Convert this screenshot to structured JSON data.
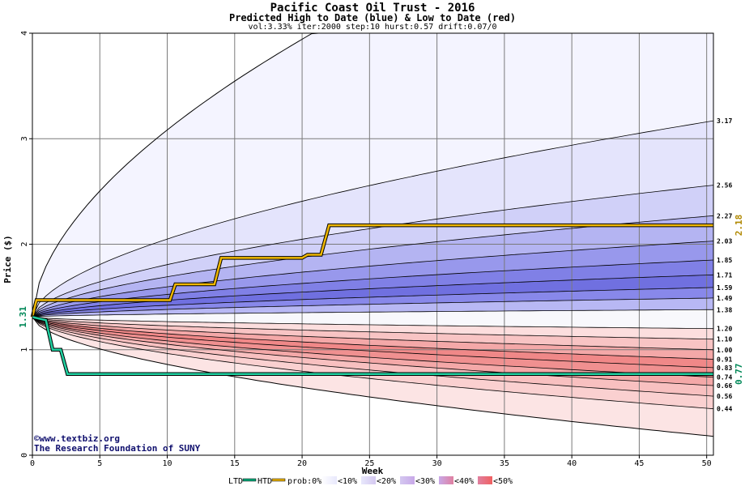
{
  "chart_data": {
    "type": "area",
    "title": "Pacific Coast Oil Trust - 2016",
    "subtitle": "Predicted High to Date (blue) &  Low to Date (red)",
    "params": "vol:3.33% iter:2000 step:10 hurst:0.57 drift:0.07/0",
    "xlabel": "Week",
    "ylabel": "Price ($)",
    "xlim": [
      0,
      50.5
    ],
    "ylim": [
      0,
      4
    ],
    "x_ticks": [
      0,
      5,
      10,
      15,
      20,
      25,
      30,
      35,
      40,
      45,
      50
    ],
    "y_ticks": [
      0,
      1,
      2,
      3,
      4
    ],
    "grid": true,
    "start_price": 1.31,
    "start_label": "1.31",
    "high_quantiles": [
      3.17,
      2.56,
      2.27,
      2.03,
      1.85,
      1.71,
      1.59,
      1.49,
      1.38
    ],
    "low_quantiles": [
      1.2,
      1.1,
      1.0,
      0.91,
      0.83,
      0.74,
      0.66,
      0.56,
      0.44
    ],
    "right_labels": [
      "3.17",
      "2.56",
      "2.27",
      "2.03",
      "1.85",
      "1.71",
      "1.59",
      "1.49",
      "1.38",
      "1.20",
      "1.10",
      "1.00",
      "0.91",
      "0.83",
      "0.74",
      "0.66",
      "0.56",
      "0.44"
    ],
    "high_to_date": {
      "name": "HTD",
      "label": "2.18",
      "color": "#c89a00",
      "points": [
        [
          0,
          1.31
        ],
        [
          0.3,
          1.47
        ],
        [
          10.2,
          1.47
        ],
        [
          10.6,
          1.62
        ],
        [
          13.5,
          1.62
        ],
        [
          14,
          1.87
        ],
        [
          20,
          1.87
        ],
        [
          20.4,
          1.9
        ],
        [
          21.4,
          1.9
        ],
        [
          22,
          2.18
        ],
        [
          50.5,
          2.18
        ]
      ]
    },
    "low_to_date": {
      "name": "LTD",
      "label": "0.77",
      "color": "#00a878",
      "points": [
        [
          0,
          1.31
        ],
        [
          1,
          1.28
        ],
        [
          1.5,
          1.0
        ],
        [
          2.1,
          1.0
        ],
        [
          2.6,
          0.77
        ],
        [
          50.5,
          0.77
        ]
      ]
    },
    "band_colors": {
      "blue": [
        "#f4f4ff",
        "#e4e4fc",
        "#d0d0f8",
        "#b4b4f2",
        "#9898ec",
        "#8080e6",
        "#7070e0",
        "#8888ea",
        "#b8b8f4"
      ],
      "red": [
        "#fce4e4",
        "#fad0d0",
        "#f8c0c0",
        "#f4a8a8",
        "#f09090",
        "#f08888",
        "#f4a8a8",
        "#f8c4c4",
        "#fcdede"
      ]
    }
  },
  "credit": {
    "site": "©www.textbiz.org",
    "org": "The Research Foundation of SUNY"
  },
  "legend": {
    "ltd": "LTD",
    "htd": "HTD",
    "prob": "prob:0%",
    "items": [
      "<10%",
      "<20%",
      "<30%",
      "<40%",
      "<50%"
    ],
    "swatch_colors": [
      "#fdfdff",
      "#e8e8fc",
      "#d4c8f0",
      "#c8a8e8",
      "#e080a0",
      "#f06060"
    ]
  }
}
